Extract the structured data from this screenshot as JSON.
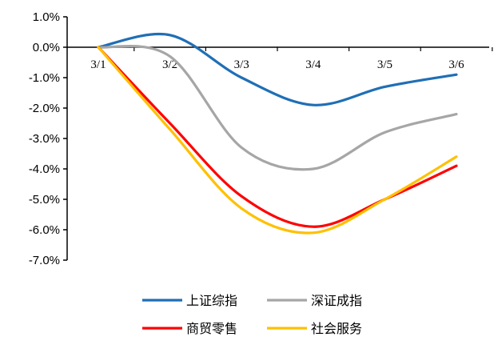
{
  "chart_data": {
    "type": "line",
    "categories": [
      "3/1",
      "3/2",
      "3/3",
      "3/4",
      "3/5",
      "3/6"
    ],
    "ylim": [
      -7.0,
      1.0
    ],
    "ytick_step": 1.0,
    "ytick_labels": [
      "1.0%",
      "0.0%",
      "-1.0%",
      "-2.0%",
      "-3.0%",
      "-4.0%",
      "-5.0%",
      "-6.0%",
      "-7.0%"
    ],
    "grid": false,
    "legend_position": "bottom",
    "series": [
      {
        "name": "上证综指",
        "color": "#1f6fb5",
        "values": [
          0.0,
          0.4,
          -1.0,
          -1.9,
          -1.3,
          -0.9
        ]
      },
      {
        "name": "深证成指",
        "color": "#a6a6a6",
        "values": [
          0.0,
          -0.3,
          -3.3,
          -4.0,
          -2.8,
          -2.2
        ]
      },
      {
        "name": "商贸零售",
        "color": "#ff0000",
        "values": [
          0.0,
          -2.5,
          -4.9,
          -5.9,
          -5.0,
          -3.9
        ]
      },
      {
        "name": "社会服务",
        "color": "#ffc000",
        "values": [
          0.0,
          -2.7,
          -5.3,
          -6.1,
          -5.0,
          -3.6
        ]
      }
    ]
  }
}
